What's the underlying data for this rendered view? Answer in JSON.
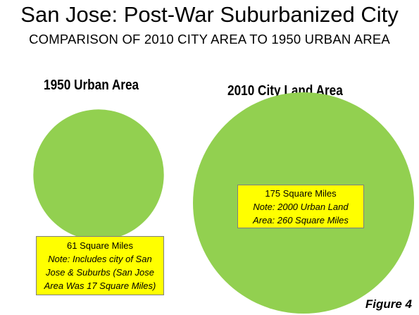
{
  "header": {
    "title": "San Jose: Post-War Suburbanized City",
    "subtitle": "COMPARISON OF 2010 CITY AREA TO 1950 URBAN AREA"
  },
  "chart_data": {
    "type": "bubble",
    "title": "San Jose: Post-War Suburbanized City",
    "subtitle": "COMPARISON OF 2010 CITY AREA TO 1950 URBAN AREA",
    "unit": "Square Miles",
    "color": "#92d050",
    "items": [
      {
        "label": "1950 Urban Area",
        "value": 61,
        "value_text": "61 Square Miles",
        "note_lines": [
          "Note:  Includes city of San",
          "Jose & Suburbs (San Jose",
          "Area Was 17 Square Miles)"
        ]
      },
      {
        "label": "2010 City Land Area",
        "value": 175,
        "value_text": "175 Square Miles",
        "note_lines": [
          "Note: 2000 Urban Land",
          "Area:  260 Square Miles"
        ]
      }
    ],
    "figure_label": "Figure 4"
  }
}
